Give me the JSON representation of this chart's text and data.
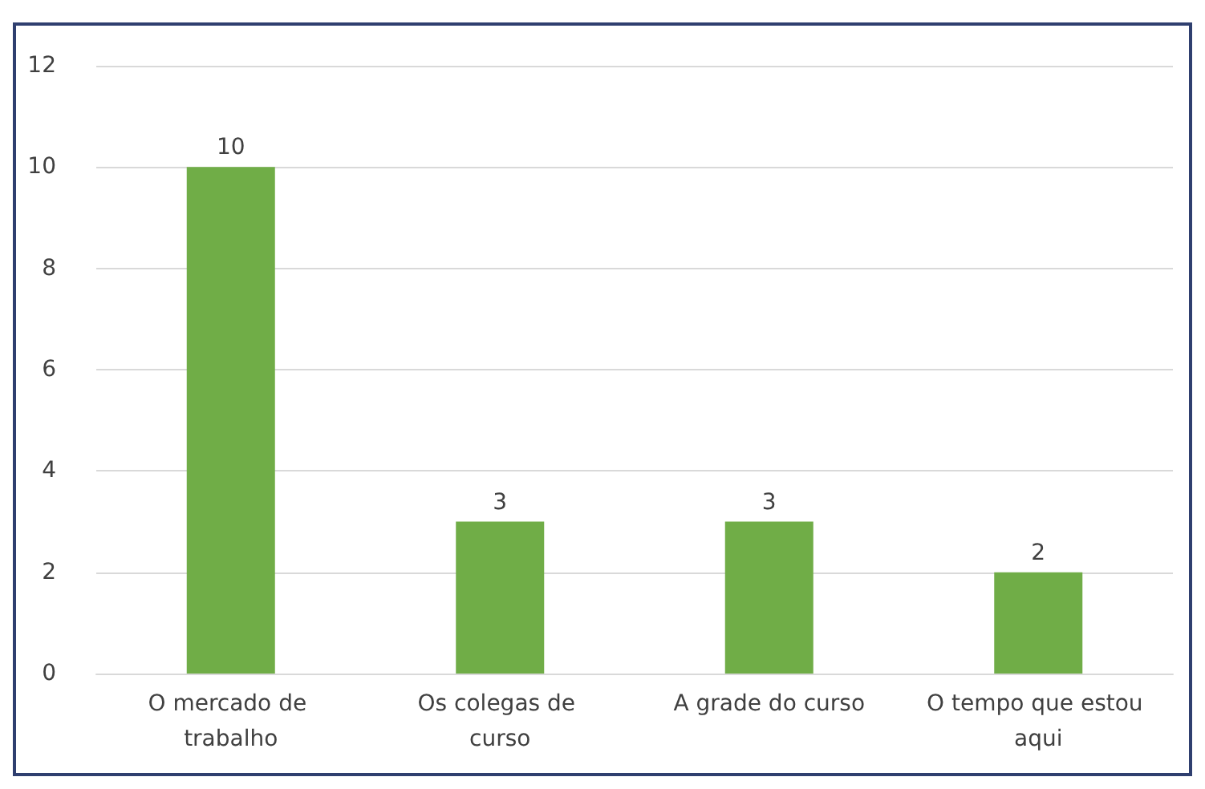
{
  "chart_data": {
    "type": "bar",
    "categories": [
      "O mercado de trabalho",
      "Os colegas de curso",
      "A grade do curso",
      "O tempo que estou aqui"
    ],
    "values": [
      10,
      3,
      3,
      2
    ],
    "color": "#70ad47",
    "ylim": [
      0,
      12
    ],
    "yticks": [
      0,
      2,
      4,
      6,
      8,
      10,
      12
    ],
    "grid": "y",
    "data_labels": true
  }
}
